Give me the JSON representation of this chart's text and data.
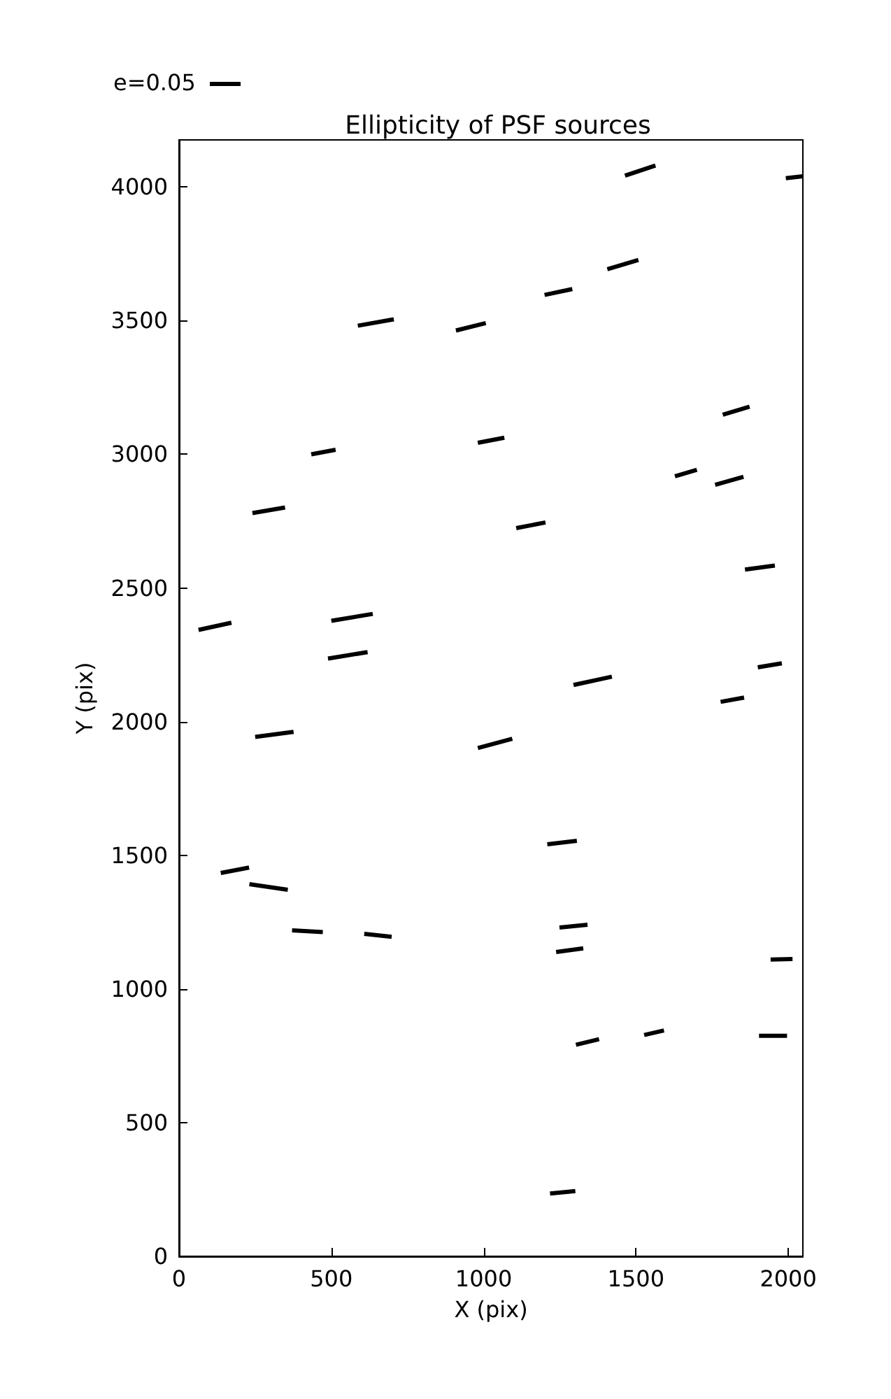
{
  "chart_data": {
    "type": "line",
    "title": "Ellipticity of PSF sources",
    "xlabel": "X (pix)",
    "ylabel": "Y (pix)",
    "annotations": [
      "e=0.05"
    ],
    "xlim": [
      0,
      2048
    ],
    "ylim": [
      0,
      4176
    ],
    "xticks": [
      0,
      500,
      1000,
      1500,
      2000
    ],
    "yticks": [
      0,
      500,
      1000,
      1500,
      2000,
      2500,
      3000,
      3500,
      4000
    ],
    "grid": false,
    "marker": "none",
    "line_style": "solid",
    "series": [
      {
        "color": "#000000",
        "x": [
          1464,
          1564
        ],
        "values": [
          4042,
          4080
        ]
      },
      {
        "color": "#000000",
        "x": [
          1992,
          2048
        ],
        "values": [
          4033,
          4040
        ]
      },
      {
        "color": "#000000",
        "x": [
          587,
          705
        ],
        "values": [
          3481,
          3505
        ]
      },
      {
        "color": "#000000",
        "x": [
          909,
          1007
        ],
        "values": [
          3463,
          3491
        ]
      },
      {
        "color": "#000000",
        "x": [
          1200,
          1291
        ],
        "values": [
          3596,
          3618
        ]
      },
      {
        "color": "#000000",
        "x": [
          1406,
          1508
        ],
        "values": [
          3692,
          3727
        ]
      },
      {
        "color": "#000000",
        "x": [
          241,
          348
        ],
        "values": [
          2780,
          2801
        ]
      },
      {
        "color": "#000000",
        "x": [
          434,
          514
        ],
        "values": [
          3000,
          3017
        ]
      },
      {
        "color": "#000000",
        "x": [
          981,
          1068
        ],
        "values": [
          3043,
          3062
        ]
      },
      {
        "color": "#000000",
        "x": [
          1107,
          1203
        ],
        "values": [
          2724,
          2745
        ]
      },
      {
        "color": "#000000",
        "x": [
          1785,
          1873
        ],
        "values": [
          3148,
          3178
        ]
      },
      {
        "color": "#000000",
        "x": [
          1628,
          1700
        ],
        "values": [
          2918,
          2942
        ]
      },
      {
        "color": "#000000",
        "x": [
          1760,
          1853
        ],
        "values": [
          2886,
          2916
        ]
      },
      {
        "color": "#000000",
        "x": [
          1858,
          1956
        ],
        "values": [
          2569,
          2584
        ]
      },
      {
        "color": "#000000",
        "x": [
          64,
          172
        ],
        "values": [
          2343,
          2370
        ]
      },
      {
        "color": "#000000",
        "x": [
          500,
          636
        ],
        "values": [
          2377,
          2403
        ]
      },
      {
        "color": "#000000",
        "x": [
          489,
          619
        ],
        "values": [
          2236,
          2260
        ]
      },
      {
        "color": "#000000",
        "x": [
          1900,
          1979
        ],
        "values": [
          2203,
          2218
        ]
      },
      {
        "color": "#000000",
        "x": [
          1295,
          1421
        ],
        "values": [
          2137,
          2168
        ]
      },
      {
        "color": "#000000",
        "x": [
          1778,
          1855
        ],
        "values": [
          2074,
          2090
        ]
      },
      {
        "color": "#000000",
        "x": [
          250,
          376
        ],
        "values": [
          1943,
          1962
        ]
      },
      {
        "color": "#000000",
        "x": [
          981,
          1094
        ],
        "values": [
          1901,
          1936
        ]
      },
      {
        "color": "#000000",
        "x": [
          1209,
          1306
        ],
        "values": [
          1541,
          1554
        ]
      },
      {
        "color": "#000000",
        "x": [
          137,
          230
        ],
        "values": [
          1434,
          1454
        ]
      },
      {
        "color": "#000000",
        "x": [
          231,
          357
        ],
        "values": [
          1392,
          1371
        ]
      },
      {
        "color": "#000000",
        "x": [
          371,
          472
        ],
        "values": [
          1219,
          1213
        ]
      },
      {
        "color": "#000000",
        "x": [
          608,
          698
        ],
        "values": [
          1206,
          1195
        ]
      },
      {
        "color": "#000000",
        "x": [
          1249,
          1341
        ],
        "values": [
          1230,
          1240
        ]
      },
      {
        "color": "#000000",
        "x": [
          1238,
          1327
        ],
        "values": [
          1138,
          1152
        ]
      },
      {
        "color": "#000000",
        "x": [
          1942,
          2014
        ],
        "values": [
          1110,
          1112
        ]
      },
      {
        "color": "#000000",
        "x": [
          1303,
          1379
        ],
        "values": [
          791,
          812
        ]
      },
      {
        "color": "#000000",
        "x": [
          1527,
          1592
        ],
        "values": [
          828,
          845
        ]
      },
      {
        "color": "#000000",
        "x": [
          1904,
          1996
        ],
        "values": [
          825,
          825
        ]
      },
      {
        "color": "#000000",
        "x": [
          1218,
          1301
        ],
        "values": [
          235,
          244
        ]
      }
    ]
  }
}
